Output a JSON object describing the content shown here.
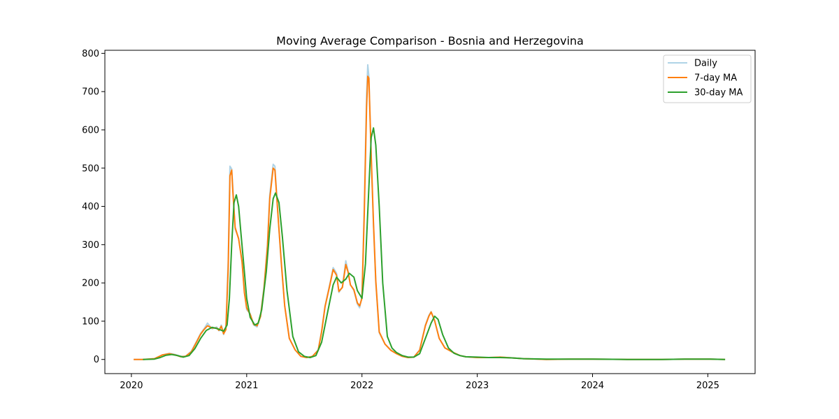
{
  "chart_data": {
    "type": "line",
    "title": "Moving Average Comparison - Bosnia and Herzegovina",
    "xlabel": "",
    "ylabel": "",
    "xlim": [
      2019.77,
      2025.41
    ],
    "ylim": [
      -37,
      808
    ],
    "x_ticks": [
      2020,
      2021,
      2022,
      2023,
      2024,
      2025
    ],
    "x_tick_labels": [
      "2020",
      "2021",
      "2022",
      "2023",
      "2024",
      "2025"
    ],
    "y_ticks": [
      0,
      100,
      200,
      300,
      400,
      500,
      600,
      700,
      800
    ],
    "y_tick_labels": [
      "0",
      "100",
      "200",
      "300",
      "400",
      "500",
      "600",
      "700",
      "800"
    ],
    "grid": false,
    "legend_position": "top-right",
    "series": [
      {
        "name": "Daily",
        "color": "#a6cee3",
        "points": [
          [
            2020.02,
            0
          ],
          [
            2020.1,
            0
          ],
          [
            2020.2,
            2
          ],
          [
            2020.27,
            12
          ],
          [
            2020.33,
            16
          ],
          [
            2020.38,
            13
          ],
          [
            2020.43,
            8
          ],
          [
            2020.47,
            8
          ],
          [
            2020.52,
            22
          ],
          [
            2020.57,
            50
          ],
          [
            2020.6,
            68
          ],
          [
            2020.63,
            80
          ],
          [
            2020.66,
            95
          ],
          [
            2020.7,
            80
          ],
          [
            2020.74,
            85
          ],
          [
            2020.76,
            75
          ],
          [
            2020.78,
            90
          ],
          [
            2020.8,
            65
          ],
          [
            2020.82,
            85
          ],
          [
            2020.84,
            260
          ],
          [
            2020.855,
            505
          ],
          [
            2020.87,
            498
          ],
          [
            2020.88,
            450
          ],
          [
            2020.9,
            340
          ],
          [
            2020.93,
            318
          ],
          [
            2020.96,
            255
          ],
          [
            2020.98,
            180
          ],
          [
            2021.0,
            130
          ],
          [
            2021.03,
            120
          ],
          [
            2021.06,
            90
          ],
          [
            2021.09,
            85
          ],
          [
            2021.12,
            115
          ],
          [
            2021.15,
            190
          ],
          [
            2021.18,
            300
          ],
          [
            2021.2,
            430
          ],
          [
            2021.23,
            510
          ],
          [
            2021.245,
            505
          ],
          [
            2021.27,
            385
          ],
          [
            2021.3,
            250
          ],
          [
            2021.33,
            140
          ],
          [
            2021.37,
            55
          ],
          [
            2021.42,
            25
          ],
          [
            2021.47,
            8
          ],
          [
            2021.52,
            5
          ],
          [
            2021.57,
            8
          ],
          [
            2021.62,
            25
          ],
          [
            2021.65,
            75
          ],
          [
            2021.68,
            140
          ],
          [
            2021.72,
            195
          ],
          [
            2021.75,
            240
          ],
          [
            2021.78,
            225
          ],
          [
            2021.8,
            175
          ],
          [
            2021.83,
            190
          ],
          [
            2021.86,
            258
          ],
          [
            2021.88,
            230
          ],
          [
            2021.9,
            195
          ],
          [
            2021.93,
            180
          ],
          [
            2021.96,
            145
          ],
          [
            2021.98,
            135
          ],
          [
            2022.0,
            165
          ],
          [
            2022.02,
            400
          ],
          [
            2022.04,
            690
          ],
          [
            2022.05,
            770
          ],
          [
            2022.06,
            740
          ],
          [
            2022.08,
            530
          ],
          [
            2022.1,
            350
          ],
          [
            2022.12,
            200
          ],
          [
            2022.15,
            70
          ],
          [
            2022.2,
            40
          ],
          [
            2022.25,
            25
          ],
          [
            2022.3,
            15
          ],
          [
            2022.35,
            8
          ],
          [
            2022.4,
            5
          ],
          [
            2022.45,
            6
          ],
          [
            2022.5,
            25
          ],
          [
            2022.55,
            90
          ],
          [
            2022.58,
            115
          ],
          [
            2022.6,
            125
          ],
          [
            2022.63,
            100
          ],
          [
            2022.67,
            55
          ],
          [
            2022.72,
            30
          ],
          [
            2022.78,
            20
          ],
          [
            2022.85,
            10
          ],
          [
            2022.9,
            7
          ],
          [
            2023.0,
            5
          ],
          [
            2023.1,
            5
          ],
          [
            2023.2,
            6
          ],
          [
            2023.3,
            4
          ],
          [
            2023.4,
            2
          ],
          [
            2023.6,
            0
          ],
          [
            2023.8,
            1
          ],
          [
            2024.0,
            1
          ],
          [
            2024.3,
            0
          ],
          [
            2024.6,
            0
          ],
          [
            2024.8,
            1
          ],
          [
            2025.0,
            1
          ],
          [
            2025.15,
            0
          ]
        ]
      },
      {
        "name": "7-day MA",
        "color": "#ff7f0e",
        "points": [
          [
            2020.02,
            0
          ],
          [
            2020.1,
            0
          ],
          [
            2020.2,
            2
          ],
          [
            2020.27,
            12
          ],
          [
            2020.33,
            15
          ],
          [
            2020.38,
            12
          ],
          [
            2020.43,
            7
          ],
          [
            2020.47,
            8
          ],
          [
            2020.52,
            20
          ],
          [
            2020.57,
            48
          ],
          [
            2020.6,
            66
          ],
          [
            2020.63,
            78
          ],
          [
            2020.66,
            88
          ],
          [
            2020.7,
            82
          ],
          [
            2020.74,
            82
          ],
          [
            2020.76,
            76
          ],
          [
            2020.78,
            87
          ],
          [
            2020.8,
            67
          ],
          [
            2020.82,
            78
          ],
          [
            2020.84,
            240
          ],
          [
            2020.855,
            480
          ],
          [
            2020.87,
            495
          ],
          [
            2020.88,
            440
          ],
          [
            2020.9,
            345
          ],
          [
            2020.93,
            315
          ],
          [
            2020.96,
            255
          ],
          [
            2020.98,
            175
          ],
          [
            2021.0,
            135
          ],
          [
            2021.03,
            118
          ],
          [
            2021.06,
            92
          ],
          [
            2021.09,
            88
          ],
          [
            2021.12,
            112
          ],
          [
            2021.15,
            185
          ],
          [
            2021.18,
            295
          ],
          [
            2021.2,
            420
          ],
          [
            2021.23,
            500
          ],
          [
            2021.245,
            495
          ],
          [
            2021.27,
            385
          ],
          [
            2021.3,
            255
          ],
          [
            2021.33,
            140
          ],
          [
            2021.37,
            55
          ],
          [
            2021.42,
            25
          ],
          [
            2021.47,
            8
          ],
          [
            2021.52,
            5
          ],
          [
            2021.57,
            8
          ],
          [
            2021.62,
            24
          ],
          [
            2021.65,
            72
          ],
          [
            2021.68,
            138
          ],
          [
            2021.72,
            192
          ],
          [
            2021.75,
            235
          ],
          [
            2021.78,
            220
          ],
          [
            2021.8,
            178
          ],
          [
            2021.83,
            188
          ],
          [
            2021.86,
            248
          ],
          [
            2021.88,
            228
          ],
          [
            2021.9,
            195
          ],
          [
            2021.93,
            182
          ],
          [
            2021.96,
            148
          ],
          [
            2021.98,
            140
          ],
          [
            2022.0,
            160
          ],
          [
            2022.02,
            380
          ],
          [
            2022.04,
            660
          ],
          [
            2022.05,
            740
          ],
          [
            2022.06,
            735
          ],
          [
            2022.08,
            535
          ],
          [
            2022.1,
            355
          ],
          [
            2022.12,
            205
          ],
          [
            2022.15,
            72
          ],
          [
            2022.2,
            40
          ],
          [
            2022.25,
            24
          ],
          [
            2022.3,
            15
          ],
          [
            2022.35,
            8
          ],
          [
            2022.4,
            5
          ],
          [
            2022.45,
            6
          ],
          [
            2022.5,
            24
          ],
          [
            2022.55,
            88
          ],
          [
            2022.58,
            113
          ],
          [
            2022.6,
            124
          ],
          [
            2022.63,
            102
          ],
          [
            2022.67,
            55
          ],
          [
            2022.72,
            30
          ],
          [
            2022.78,
            20
          ],
          [
            2022.85,
            10
          ],
          [
            2022.9,
            7
          ],
          [
            2023.0,
            5
          ],
          [
            2023.1,
            5
          ],
          [
            2023.2,
            6
          ],
          [
            2023.3,
            4
          ],
          [
            2023.4,
            2
          ],
          [
            2023.6,
            0
          ],
          [
            2023.8,
            1
          ],
          [
            2024.0,
            1
          ],
          [
            2024.3,
            0
          ],
          [
            2024.6,
            0
          ],
          [
            2024.8,
            1
          ],
          [
            2025.0,
            1
          ],
          [
            2025.15,
            0
          ]
        ]
      },
      {
        "name": "30-day MA",
        "color": "#2ca02c",
        "points": [
          [
            2020.1,
            0
          ],
          [
            2020.2,
            1
          ],
          [
            2020.25,
            5
          ],
          [
            2020.3,
            11
          ],
          [
            2020.35,
            13
          ],
          [
            2020.4,
            10
          ],
          [
            2020.45,
            6
          ],
          [
            2020.5,
            10
          ],
          [
            2020.55,
            28
          ],
          [
            2020.6,
            55
          ],
          [
            2020.65,
            76
          ],
          [
            2020.7,
            84
          ],
          [
            2020.75,
            80
          ],
          [
            2020.8,
            74
          ],
          [
            2020.83,
            90
          ],
          [
            2020.85,
            160
          ],
          [
            2020.87,
            300
          ],
          [
            2020.89,
            410
          ],
          [
            2020.91,
            430
          ],
          [
            2020.93,
            400
          ],
          [
            2020.95,
            330
          ],
          [
            2020.98,
            230
          ],
          [
            2021.0,
            160
          ],
          [
            2021.03,
            110
          ],
          [
            2021.07,
            90
          ],
          [
            2021.1,
            95
          ],
          [
            2021.13,
            130
          ],
          [
            2021.17,
            230
          ],
          [
            2021.2,
            340
          ],
          [
            2021.23,
            420
          ],
          [
            2021.25,
            435
          ],
          [
            2021.28,
            410
          ],
          [
            2021.31,
            320
          ],
          [
            2021.35,
            180
          ],
          [
            2021.4,
            60
          ],
          [
            2021.45,
            20
          ],
          [
            2021.5,
            8
          ],
          [
            2021.55,
            5
          ],
          [
            2021.6,
            10
          ],
          [
            2021.65,
            45
          ],
          [
            2021.7,
            120
          ],
          [
            2021.75,
            195
          ],
          [
            2021.78,
            215
          ],
          [
            2021.82,
            200
          ],
          [
            2021.86,
            210
          ],
          [
            2021.89,
            225
          ],
          [
            2021.93,
            215
          ],
          [
            2021.96,
            180
          ],
          [
            2022.0,
            160
          ],
          [
            2022.03,
            250
          ],
          [
            2022.06,
            450
          ],
          [
            2022.08,
            580
          ],
          [
            2022.1,
            605
          ],
          [
            2022.12,
            560
          ],
          [
            2022.15,
            400
          ],
          [
            2022.18,
            200
          ],
          [
            2022.22,
            60
          ],
          [
            2022.26,
            30
          ],
          [
            2022.3,
            18
          ],
          [
            2022.35,
            10
          ],
          [
            2022.4,
            6
          ],
          [
            2022.45,
            6
          ],
          [
            2022.5,
            15
          ],
          [
            2022.55,
            55
          ],
          [
            2022.6,
            95
          ],
          [
            2022.63,
            113
          ],
          [
            2022.66,
            105
          ],
          [
            2022.7,
            65
          ],
          [
            2022.75,
            30
          ],
          [
            2022.8,
            16
          ],
          [
            2022.85,
            10
          ],
          [
            2022.9,
            7
          ],
          [
            2023.0,
            6
          ],
          [
            2023.1,
            5
          ],
          [
            2023.2,
            5
          ],
          [
            2023.3,
            4
          ],
          [
            2023.4,
            2
          ],
          [
            2023.6,
            1
          ],
          [
            2023.8,
            1
          ],
          [
            2024.0,
            1
          ],
          [
            2024.3,
            0
          ],
          [
            2024.6,
            0
          ],
          [
            2024.8,
            1
          ],
          [
            2025.0,
            1
          ],
          [
            2025.15,
            0
          ]
        ]
      }
    ]
  }
}
